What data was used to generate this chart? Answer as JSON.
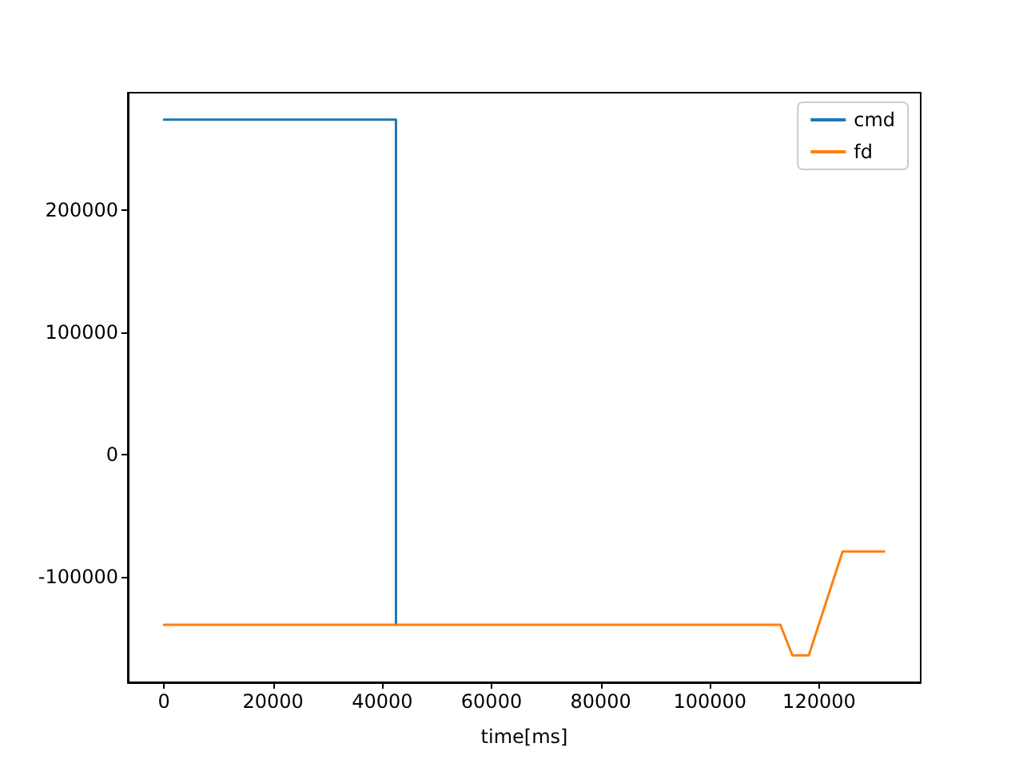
{
  "chart_data": {
    "type": "line",
    "xlabel": "time[ms]",
    "xlim": [
      -6600,
      138600
    ],
    "xticks": [
      0,
      20000,
      40000,
      60000,
      80000,
      100000,
      120000
    ],
    "ylim": [
      -186000,
      296000
    ],
    "yticks": [
      -100000,
      0,
      100000,
      200000
    ],
    "grid": false,
    "legend": "top right",
    "marker": "none",
    "line_style": "solid",
    "series": [
      {
        "name": "cmd",
        "color": "#1f77b4",
        "x": [
          0,
          42500,
          42500
        ],
        "values": [
          274000,
          274000,
          -139000
        ]
      },
      {
        "name": "fd",
        "color": "#ff7f0e",
        "x": [
          0,
          112900,
          115100,
          118100,
          124300,
          131900
        ],
        "values": [
          -139000,
          -139000,
          -164000,
          -164000,
          -79000,
          -79000
        ]
      }
    ]
  }
}
